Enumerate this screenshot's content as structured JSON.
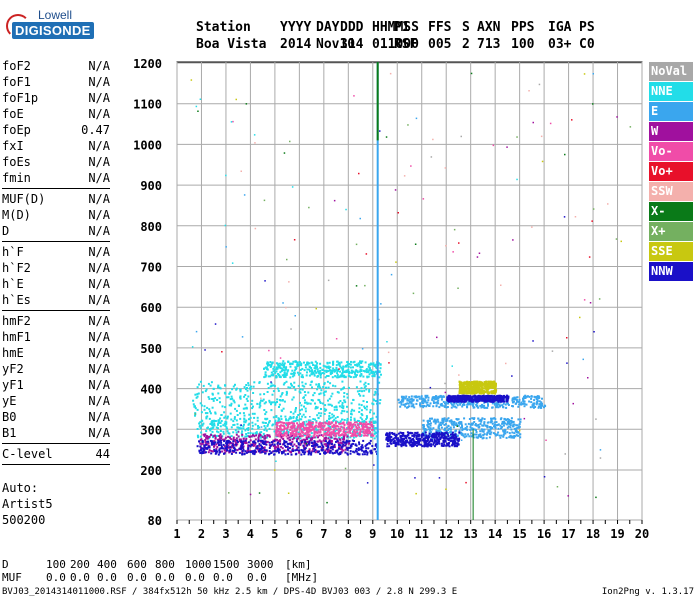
{
  "logo": {
    "line1": "Lowell",
    "line2": "DIGISONDE"
  },
  "header": {
    "labels": [
      "Station",
      "YYYY",
      "DAY",
      "DDD",
      "HHMMSS",
      "P1",
      "FFS",
      "S",
      "AXN",
      "PPS",
      "IGA",
      "PS"
    ],
    "values": [
      "Boa Vista",
      "2014",
      "Nov10",
      "314",
      "011000",
      "RSF",
      "005",
      "2",
      "713",
      "100",
      "03+",
      "C0"
    ]
  },
  "params": {
    "group1": [
      {
        "name": "foF2",
        "value": "N/A"
      },
      {
        "name": "foF1",
        "value": "N/A"
      },
      {
        "name": "foF1p",
        "value": "N/A"
      },
      {
        "name": "foE",
        "value": "N/A"
      },
      {
        "name": "foEp",
        "value": "0.47"
      },
      {
        "name": "fxI",
        "value": "N/A"
      },
      {
        "name": "foEs",
        "value": "N/A"
      },
      {
        "name": "fmin",
        "value": "N/A"
      }
    ],
    "group2": [
      {
        "name": "MUF(D)",
        "value": "N/A"
      },
      {
        "name": "M(D)",
        "value": "N/A"
      },
      {
        "name": "D",
        "value": "N/A"
      }
    ],
    "group3": [
      {
        "name": "h`F",
        "value": "N/A"
      },
      {
        "name": "h`F2",
        "value": "N/A"
      },
      {
        "name": "h`E",
        "value": "N/A"
      },
      {
        "name": "h`Es",
        "value": "N/A"
      }
    ],
    "group4": [
      {
        "name": "hmF2",
        "value": "N/A"
      },
      {
        "name": "hmF1",
        "value": "N/A"
      },
      {
        "name": "hmE",
        "value": "N/A"
      },
      {
        "name": "yF2",
        "value": "N/A"
      },
      {
        "name": "yF1",
        "value": "N/A"
      },
      {
        "name": "yE",
        "value": "N/A"
      },
      {
        "name": "B0",
        "value": "N/A"
      },
      {
        "name": "B1",
        "value": "N/A"
      }
    ],
    "group5": [
      {
        "name": "C-level",
        "value": "44"
      }
    ]
  },
  "auto": {
    "line1": "Auto:",
    "line2": "Artist5",
    "line3": "500200"
  },
  "legend": [
    {
      "label": "NoVal",
      "color": "#a8a8a8"
    },
    {
      "label": "NNE",
      "color": "#22dde8"
    },
    {
      "label": "E",
      "color": "#3aa6ee"
    },
    {
      "label": "W",
      "color": "#a0109e"
    },
    {
      "label": "Vo-",
      "color": "#f04ca8"
    },
    {
      "label": "Vo+",
      "color": "#e8102a"
    },
    {
      "label": "SSW",
      "color": "#f4b0ac"
    },
    {
      "label": "X-",
      "color": "#0a7a18"
    },
    {
      "label": "X+",
      "color": "#74b060"
    },
    {
      "label": "SSE",
      "color": "#c8c810"
    },
    {
      "label": "NNW",
      "color": "#1a10c8"
    }
  ],
  "chart_data": {
    "type": "scatter",
    "xlim": [
      1,
      20
    ],
    "ylim": [
      80,
      1200
    ],
    "xticks": [
      1,
      2,
      3,
      4,
      5,
      6,
      7,
      8,
      9,
      10,
      11,
      12,
      13,
      14,
      15,
      16,
      17,
      18,
      19,
      20
    ],
    "yticks": [
      80,
      200,
      300,
      400,
      500,
      600,
      700,
      800,
      900,
      1000,
      1100,
      1200
    ],
    "grid": true,
    "xunit": "MHz",
    "yunit": "km",
    "marker_freq": 9.2,
    "regions": [
      {
        "color": "#22dde8",
        "f": [
          1.6,
          9.3
        ],
        "h": [
          330,
          420
        ]
      },
      {
        "color": "#22dde8",
        "f": [
          4.5,
          9.3
        ],
        "h": [
          430,
          470
        ]
      },
      {
        "color": "#22dde8",
        "f": [
          1.8,
          9.2
        ],
        "h": [
          280,
          330
        ]
      },
      {
        "color": "#3aa6ee",
        "f": [
          10.0,
          16.0
        ],
        "h": [
          355,
          385
        ]
      },
      {
        "color": "#3aa6ee",
        "f": [
          11.0,
          15.0
        ],
        "h": [
          280,
          330
        ]
      },
      {
        "color": "#a0109e",
        "f": [
          1.9,
          8.0
        ],
        "h": [
          245,
          290
        ]
      },
      {
        "color": "#f04ca8",
        "f": [
          5.0,
          9.0
        ],
        "h": [
          285,
          320
        ]
      },
      {
        "color": "#1a10c8",
        "f": [
          1.8,
          9.2
        ],
        "h": [
          240,
          275
        ]
      },
      {
        "color": "#1a10c8",
        "f": [
          9.5,
          12.5
        ],
        "h": [
          260,
          295
        ]
      },
      {
        "color": "#1a10c8",
        "f": [
          12.0,
          14.5
        ],
        "h": [
          370,
          385
        ]
      },
      {
        "color": "#c8c810",
        "f": [
          12.5,
          14.0
        ],
        "h": [
          390,
          420
        ]
      }
    ]
  },
  "bottom": {
    "d_label": "D",
    "d_values": [
      "100",
      "200",
      "400",
      "600",
      "800",
      "1000",
      "1500",
      "3000",
      "[km]"
    ],
    "muf_label": "MUF",
    "muf_values": [
      "0.0",
      "0.0",
      "0.0",
      "0.0",
      "0.0",
      "0.0",
      "0.0",
      "0.0",
      "[MHz]"
    ]
  },
  "footer": {
    "text": "BVJ03_2014314011000.RSF / 384fx512h 50 kHz 2.5 km / DPS-4D BVJ03 003 / 2.8 N 299.3 E",
    "version": "Ion2Png v. 1.3.17"
  }
}
